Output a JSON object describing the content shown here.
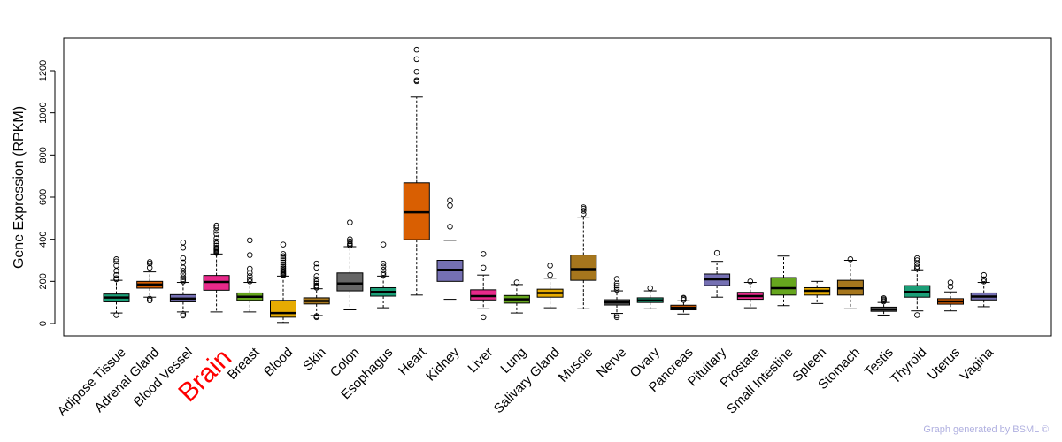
{
  "chart_data": {
    "type": "boxplot",
    "title": "",
    "xlabel": "",
    "ylabel": "Gene Expression (RPKM)",
    "ylim": [
      -30,
      1350
    ],
    "yticks": [
      0,
      200,
      400,
      600,
      800,
      1000,
      1200
    ],
    "highlight": "Brain",
    "credit": "Graph generated by BSML ©",
    "series": [
      {
        "name": "Adipose Tissue",
        "color": "#1b9e77",
        "whisker_low": 50,
        "q1": 103,
        "median": 123,
        "q3": 140,
        "whisker_high": 205,
        "outliers": [
          40,
          210,
          215,
          230,
          250,
          275,
          295,
          305
        ]
      },
      {
        "name": "Adrenal Gland",
        "color": "#d95f02",
        "whisker_low": 125,
        "q1": 168,
        "median": 185,
        "q3": 200,
        "whisker_high": 245,
        "outliers": [
          110,
          118,
          265,
          285,
          292
        ]
      },
      {
        "name": "Blood Vessel",
        "color": "#7570b3",
        "whisker_low": 55,
        "q1": 103,
        "median": 118,
        "q3": 137,
        "whisker_high": 195,
        "outliers": [
          38,
          45,
          200,
          210,
          220,
          235,
          250,
          265,
          290,
          310,
          360,
          385
        ]
      },
      {
        "name": "Brain",
        "color": "#e7298a",
        "whisker_low": 55,
        "q1": 158,
        "median": 197,
        "q3": 228,
        "whisker_high": 330,
        "outliers": [
          335,
          340,
          345,
          350,
          355,
          360,
          370,
          380,
          390,
          405,
          425,
          440,
          455,
          465
        ]
      },
      {
        "name": "Breast",
        "color": "#66a61e",
        "whisker_low": 55,
        "q1": 110,
        "median": 127,
        "q3": 145,
        "whisker_high": 195,
        "outliers": [
          200,
          210,
          225,
          240,
          260,
          325,
          395
        ]
      },
      {
        "name": "Blood",
        "color": "#e6ab02",
        "whisker_low": 5,
        "q1": 30,
        "median": 50,
        "q3": 110,
        "whisker_high": 225,
        "outliers": [
          228,
          232,
          236,
          240,
          245,
          250,
          255,
          262,
          270,
          280,
          290,
          300,
          310,
          320,
          330,
          375
        ]
      },
      {
        "name": "Skin",
        "color": "#a6761d",
        "whisker_low": 38,
        "q1": 93,
        "median": 107,
        "q3": 122,
        "whisker_high": 165,
        "outliers": [
          30,
          35,
          170,
          175,
          180,
          190,
          200,
          210,
          225,
          265,
          285
        ]
      },
      {
        "name": "Colon",
        "color": "#666666",
        "whisker_low": 65,
        "q1": 155,
        "median": 190,
        "q3": 240,
        "whisker_high": 365,
        "outliers": [
          370,
          375,
          380,
          390,
          400,
          480
        ]
      },
      {
        "name": "Esophagus",
        "color": "#1b9e77",
        "whisker_low": 75,
        "q1": 130,
        "median": 150,
        "q3": 170,
        "whisker_high": 225,
        "outliers": [
          230,
          240,
          255,
          270,
          285,
          375
        ]
      },
      {
        "name": "Heart",
        "color": "#d95f02",
        "whisker_low": 135,
        "q1": 398,
        "median": 528,
        "q3": 668,
        "whisker_high": 1075,
        "outliers": [
          1150,
          1155,
          1195,
          1255,
          1300
        ]
      },
      {
        "name": "Kidney",
        "color": "#7570b3",
        "whisker_low": 115,
        "q1": 200,
        "median": 255,
        "q3": 300,
        "whisker_high": 395,
        "outliers": [
          460,
          560,
          585
        ]
      },
      {
        "name": "Liver",
        "color": "#e7298a",
        "whisker_low": 70,
        "q1": 112,
        "median": 130,
        "q3": 160,
        "whisker_high": 230,
        "outliers": [
          30,
          265,
          330
        ]
      },
      {
        "name": "Lung",
        "color": "#66a61e",
        "whisker_low": 50,
        "q1": 97,
        "median": 115,
        "q3": 133,
        "whisker_high": 185,
        "outliers": [
          195
        ]
      },
      {
        "name": "Salivary Gland",
        "color": "#e6ab02",
        "whisker_low": 75,
        "q1": 125,
        "median": 145,
        "q3": 163,
        "whisker_high": 215,
        "outliers": [
          230,
          275
        ]
      },
      {
        "name": "Muscle",
        "color": "#a6761d",
        "whisker_low": 70,
        "q1": 205,
        "median": 258,
        "q3": 325,
        "whisker_high": 505,
        "outliers": [
          520,
          535,
          545,
          552
        ]
      },
      {
        "name": "Nerve",
        "color": "#666666",
        "whisker_low": 48,
        "q1": 88,
        "median": 100,
        "q3": 113,
        "whisker_high": 155,
        "outliers": [
          30,
          38,
          160,
          170,
          180,
          190,
          212
        ]
      },
      {
        "name": "Ovary",
        "color": "#1b9e77",
        "whisker_low": 70,
        "q1": 100,
        "median": 110,
        "q3": 122,
        "whisker_high": 155,
        "outliers": [
          168
        ]
      },
      {
        "name": "Pancreas",
        "color": "#d95f02",
        "whisker_low": 45,
        "q1": 65,
        "median": 75,
        "q3": 87,
        "whisker_high": 108,
        "outliers": [
          112,
          118,
          122
        ]
      },
      {
        "name": "Pituitary",
        "color": "#7570b3",
        "whisker_low": 125,
        "q1": 180,
        "median": 210,
        "q3": 235,
        "whisker_high": 295,
        "outliers": [
          335
        ]
      },
      {
        "name": "Prostate",
        "color": "#e7298a",
        "whisker_low": 75,
        "q1": 115,
        "median": 130,
        "q3": 148,
        "whisker_high": 195,
        "outliers": [
          200
        ]
      },
      {
        "name": "Small Intestine",
        "color": "#66a61e",
        "whisker_low": 85,
        "q1": 135,
        "median": 168,
        "q3": 218,
        "whisker_high": 320,
        "outliers": []
      },
      {
        "name": "Spleen",
        "color": "#e6ab02",
        "whisker_low": 95,
        "q1": 135,
        "median": 155,
        "q3": 170,
        "whisker_high": 200,
        "outliers": []
      },
      {
        "name": "Stomach",
        "color": "#a6761d",
        "whisker_low": 70,
        "q1": 135,
        "median": 167,
        "q3": 205,
        "whisker_high": 300,
        "outliers": [
          305
        ]
      },
      {
        "name": "Testis",
        "color": "#666666",
        "whisker_low": 40,
        "q1": 58,
        "median": 67,
        "q3": 78,
        "whisker_high": 100,
        "outliers": [
          105,
          110,
          115,
          120
        ]
      },
      {
        "name": "Thyroid",
        "color": "#1b9e77",
        "whisker_low": 60,
        "q1": 125,
        "median": 150,
        "q3": 180,
        "whisker_high": 255,
        "outliers": [
          40,
          260,
          270,
          285,
          300,
          310
        ]
      },
      {
        "name": "Uterus",
        "color": "#d95f02",
        "whisker_low": 60,
        "q1": 92,
        "median": 105,
        "q3": 118,
        "whisker_high": 150,
        "outliers": [
          175,
          195
        ]
      },
      {
        "name": "Vagina",
        "color": "#7570b3",
        "whisker_low": 80,
        "q1": 112,
        "median": 128,
        "q3": 145,
        "whisker_high": 195,
        "outliers": [
          200,
          210,
          230
        ]
      }
    ]
  }
}
